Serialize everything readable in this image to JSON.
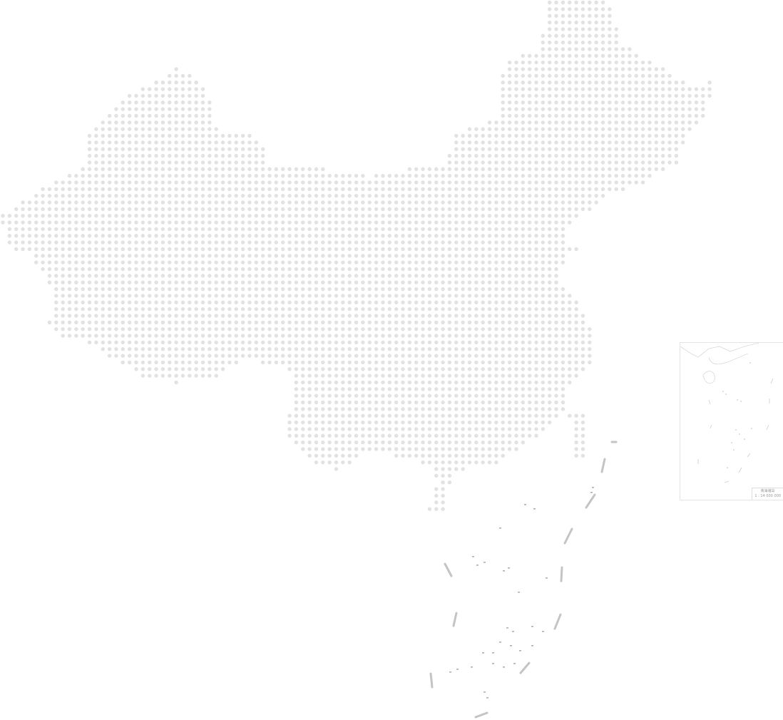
{
  "map": {
    "region": "China",
    "style": "dot-matrix",
    "dot_color": "#e2e2e2",
    "dash_line_color": "#c4c4c4"
  },
  "inset": {
    "title": "南海诸岛",
    "scale": "1 : 14 000 000"
  }
}
